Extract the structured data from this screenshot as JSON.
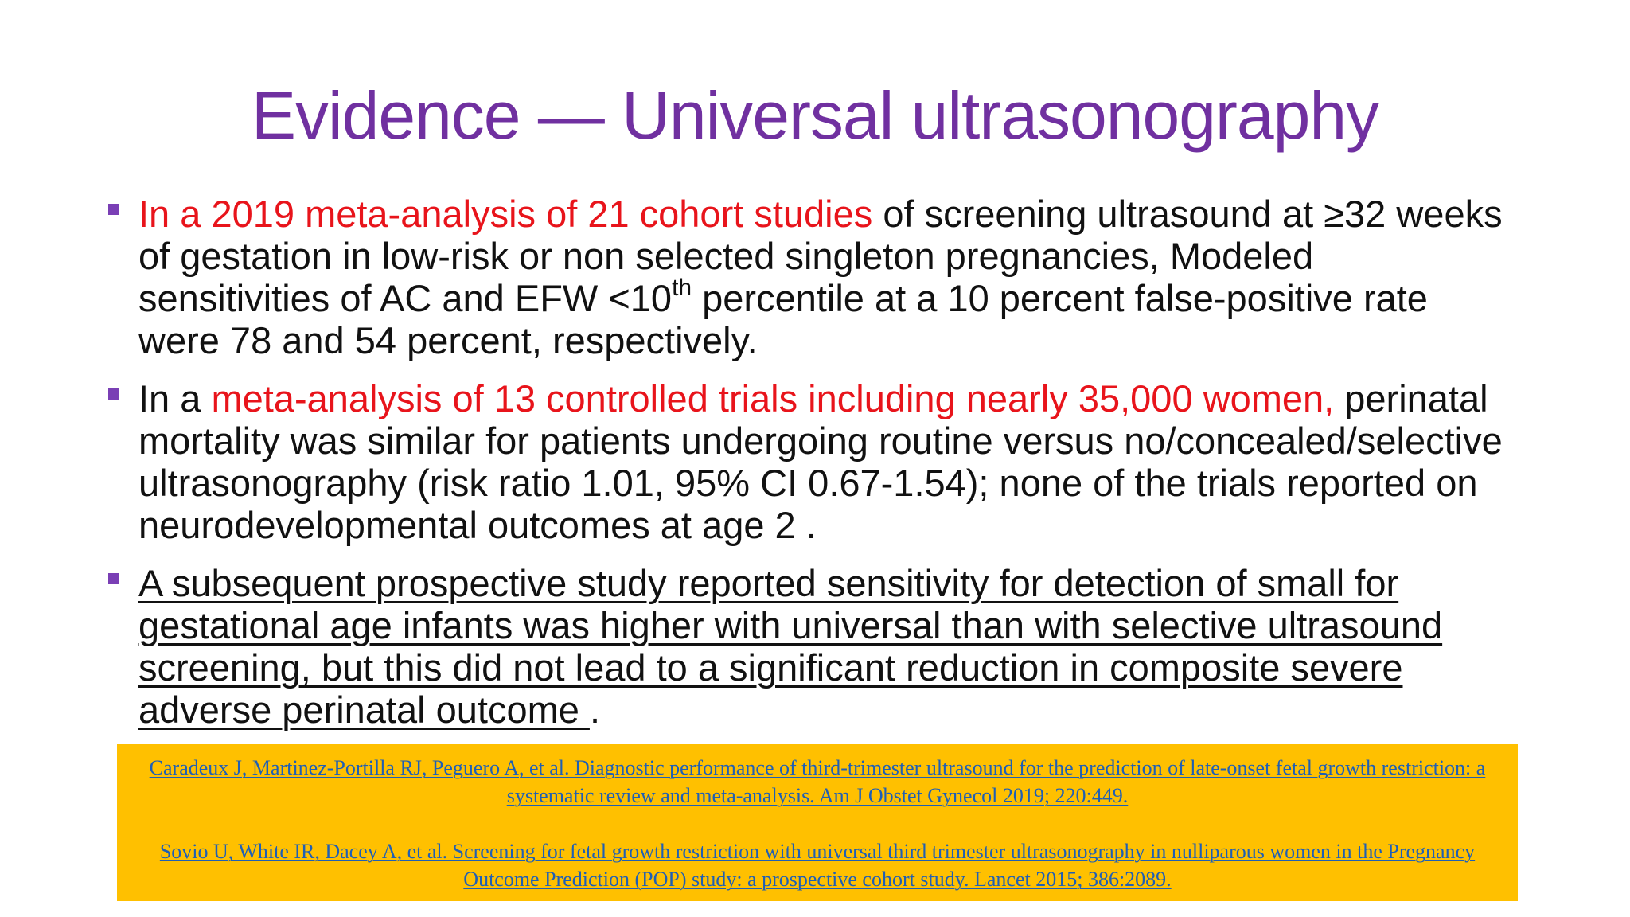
{
  "slide": {
    "title": "Evidence — Universal ultrasonography",
    "bullets": [
      {
        "red_lead": "In a 2019 meta-analysis of 21 cohort studies",
        "text_a": " of screening ultrasound at ≥32 weeks of gestation in low-risk or non selected singleton pregnancies, Modeled sensitivities of AC and EFW <10",
        "sup": "th",
        "text_b": " percentile at a 10 percent false-positive rate were 78 and 54 percent, respectively."
      },
      {
        "lead": "In a ",
        "red": "meta-analysis of 13 controlled trials including nearly 35,000 women,",
        "text": " perinatal mortality was similar for patients undergoing routine versus no/concealed/selective ultrasonography (risk ratio 1.01, 95% CI 0.67-1.54); none of the trials reported on neurodevelopmental outcomes at age 2 ."
      },
      {
        "underlined": "A subsequent prospective study reported sensitivity for detection of small for gestational age infants was higher with universal than with selective ultrasound screening, but this did not lead to a significant reduction in composite severe adverse perinatal outcome ",
        "tail": "."
      }
    ],
    "references": [
      "Caradeux J, Martinez-Portilla RJ, Peguero A, et al. Diagnostic performance of third-trimester ultrasound for the prediction of late-onset fetal growth restriction: a systematic review and meta-analysis. Am J Obstet Gynecol 2019; 220:449.",
      "Sovio U, White IR, Dacey A, et al. Screening for fetal growth restriction with universal third trimester ultrasonography in nulliparous women in the Pregnancy Outcome Prediction (POP) study: a prospective cohort study. Lancet 2015; 386:2089."
    ],
    "colors": {
      "title": "#7030a0",
      "highlight_red": "#e8141b",
      "reference_box": "#ffc000",
      "reference_link": "#1f5fb5",
      "bullet_marker": "#7a3fb5"
    },
    "icons": {
      "bullet": "square-bullet-icon"
    }
  }
}
